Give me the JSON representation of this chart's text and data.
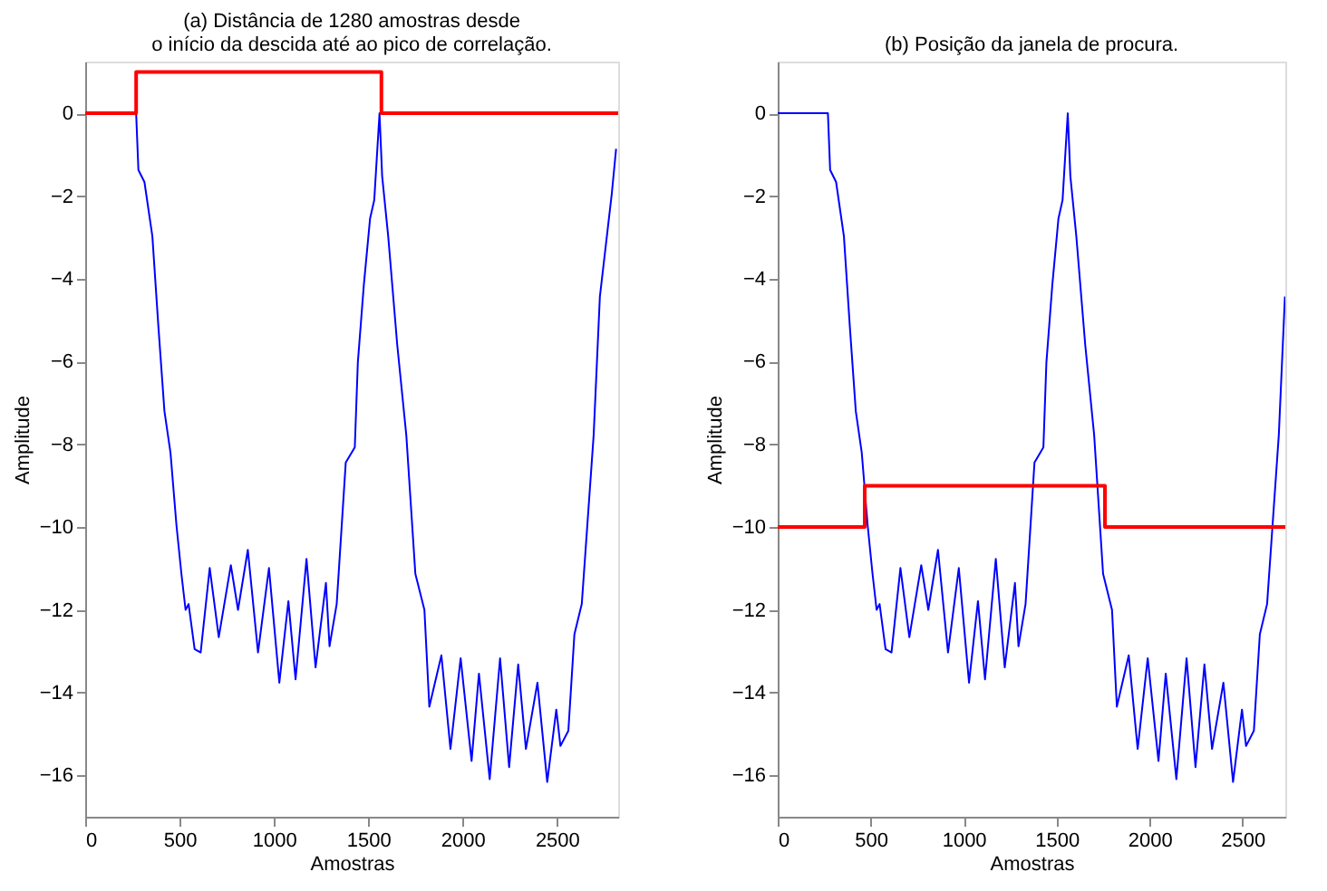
{
  "chart_data": [
    {
      "type": "line",
      "title": "(a) Distância de 1280 amostras desde\no início da descida até ao pico de correlação.",
      "xlabel": "Amostras",
      "ylabel": "Amplitude",
      "xlim": [
        0,
        2825
      ],
      "ylim": [
        -17,
        1.25
      ],
      "xticks": [
        0,
        500,
        1000,
        1500,
        2000,
        2500
      ],
      "yticks": [
        0,
        -2,
        -4,
        -6,
        -8,
        -10,
        -12,
        -14,
        -16
      ],
      "grid": false,
      "legend": false,
      "series": [
        {
          "type": "line",
          "color": "#0000ff",
          "x": [
            0,
            270,
            282,
            314,
            356,
            388,
            420,
            452,
            484,
            510,
            532,
            548,
            580,
            612,
            660,
            708,
            772,
            810,
            862,
            916,
            974,
            1029,
            1077,
            1115,
            1173,
            1221,
            1276,
            1295,
            1333,
            1381,
            1429,
            1445,
            1477,
            1510,
            1532,
            1560,
            1574,
            1606,
            1654,
            1702,
            1750,
            1798,
            1824,
            1888,
            1936,
            1990,
            2048,
            2087,
            2144,
            2199,
            2247,
            2295,
            2336,
            2397,
            2449,
            2497,
            2519,
            2561,
            2593,
            2632,
            2695,
            2728,
            2791,
            2814
          ],
          "values": [
            0,
            0,
            -1.37,
            -1.66,
            -2.97,
            -5.16,
            -7.2,
            -8.2,
            -9.97,
            -11.13,
            -12.0,
            -11.86,
            -12.95,
            -13.03,
            -10.99,
            -12.66,
            -10.92,
            -12.0,
            -10.55,
            -13.03,
            -10.99,
            -13.76,
            -11.79,
            -13.68,
            -10.77,
            -13.39,
            -11.35,
            -12.88,
            -11.86,
            -8.44,
            -8.07,
            -6.03,
            -4.14,
            -2.54,
            -2.1,
            0,
            -1.52,
            -2.97,
            -5.6,
            -7.78,
            -11.13,
            -12.0,
            -14.34,
            -13.1,
            -15.36,
            -13.17,
            -15.65,
            -13.54,
            -16.09,
            -13.17,
            -15.8,
            -13.32,
            -15.36,
            -13.76,
            -16.16,
            -14.41,
            -15.29,
            -14.92,
            -12.59,
            -11.86,
            -7.78,
            -4.43,
            -1.95,
            -0.86
          ]
        },
        {
          "type": "step",
          "color": "#ff0000",
          "x": [
            0,
            270,
            1570,
            2825
          ],
          "values": [
            0,
            1,
            0,
            0
          ]
        }
      ]
    },
    {
      "type": "line",
      "title": "(b) Posição da janela de procura.",
      "xlabel": "Amostras",
      "ylabel": "Amplitude",
      "xlim": [
        0,
        2730
      ],
      "ylim": [
        -17,
        1.25
      ],
      "xticks": [
        0,
        500,
        1000,
        1500,
        2000,
        2500
      ],
      "yticks": [
        0,
        -2,
        -4,
        -6,
        -8,
        -10,
        -12,
        -14,
        -16
      ],
      "grid": false,
      "legend": false,
      "series": [
        {
          "type": "line",
          "color": "#0000ff",
          "x": [
            0,
            270,
            282,
            314,
            356,
            388,
            420,
            452,
            484,
            510,
            532,
            548,
            580,
            612,
            660,
            708,
            772,
            810,
            862,
            916,
            974,
            1029,
            1077,
            1115,
            1173,
            1221,
            1276,
            1295,
            1333,
            1381,
            1429,
            1445,
            1477,
            1510,
            1532,
            1560,
            1574,
            1606,
            1654,
            1702,
            1750,
            1798,
            1824,
            1888,
            1936,
            1990,
            2048,
            2087,
            2144,
            2199,
            2247,
            2295,
            2336,
            2397,
            2449,
            2497,
            2519,
            2561,
            2593,
            2632,
            2695,
            2728
          ],
          "values": [
            0,
            0,
            -1.37,
            -1.66,
            -2.97,
            -5.16,
            -7.2,
            -8.2,
            -9.97,
            -11.13,
            -12.0,
            -11.86,
            -12.95,
            -13.03,
            -10.99,
            -12.66,
            -10.92,
            -12.0,
            -10.55,
            -13.03,
            -10.99,
            -13.76,
            -11.79,
            -13.68,
            -10.77,
            -13.39,
            -11.35,
            -12.88,
            -11.86,
            -8.44,
            -8.07,
            -6.03,
            -4.14,
            -2.54,
            -2.1,
            0,
            -1.52,
            -2.97,
            -5.6,
            -7.78,
            -11.13,
            -12.0,
            -14.34,
            -13.1,
            -15.36,
            -13.17,
            -15.65,
            -13.54,
            -16.09,
            -13.17,
            -15.8,
            -13.32,
            -15.36,
            -13.76,
            -16.16,
            -14.41,
            -15.29,
            -14.92,
            -12.59,
            -11.86,
            -7.78,
            -4.43
          ]
        },
        {
          "type": "step",
          "color": "#ff0000",
          "x": [
            0,
            468,
            1760,
            2730
          ],
          "values": [
            -10,
            -9,
            -10,
            -10
          ]
        }
      ]
    }
  ]
}
